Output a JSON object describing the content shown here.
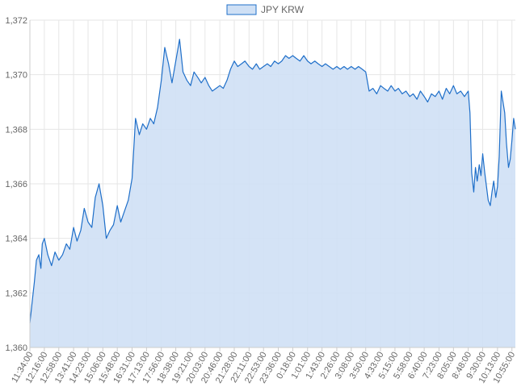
{
  "chart_data": {
    "type": "area",
    "title": "",
    "xlabel": "",
    "ylabel": "",
    "legend": {
      "label": "JPY KRW",
      "position": "top-center"
    },
    "colors": {
      "line": "#1f6fc9",
      "fill": "#cfe0f5",
      "grid": "#e6e6e6",
      "axis_text": "#666666"
    },
    "grid": true,
    "ylim": [
      1360,
      1372
    ],
    "y_ticks": [
      "1,360",
      "1,362",
      "1,364",
      "1,366",
      "1,368",
      "1,370",
      "1,372"
    ],
    "x_tick_labels": [
      "11:34:00",
      "12:16:00",
      "12:58:00",
      "13:41:00",
      "14:23:00",
      "15:06:00",
      "15:48:00",
      "16:31:00",
      "17:13:00",
      "17:56:00",
      "18:38:00",
      "19:21:00",
      "20:03:00",
      "20:46:00",
      "21:28:00",
      "22:11:00",
      "22:53:00",
      "23:36:00",
      "0:18:00",
      "1:01:00",
      "1:43:00",
      "2:26:00",
      "3:08:00",
      "3:50:00",
      "4:33:00",
      "5:15:00",
      "5:58:00",
      "6:40:00",
      "7:23:00",
      "8:05:00",
      "8:48:00",
      "9:30:00",
      "10:13:00",
      "10:55:00"
    ],
    "series": [
      {
        "name": "JPY KRW",
        "points": [
          [
            "11:34:00",
            1360.9
          ],
          [
            "11:40:00",
            1361.6
          ],
          [
            "11:47:00",
            1362.4
          ],
          [
            "11:53:00",
            1363.2
          ],
          [
            "12:00:00",
            1363.4
          ],
          [
            "12:06:00",
            1362.9
          ],
          [
            "12:10:00",
            1363.8
          ],
          [
            "12:16:00",
            1364.0
          ],
          [
            "12:26:00",
            1363.4
          ],
          [
            "12:37:00",
            1363.0
          ],
          [
            "12:47:00",
            1363.5
          ],
          [
            "12:58:00",
            1363.2
          ],
          [
            "13:09:00",
            1363.4
          ],
          [
            "13:20:00",
            1363.8
          ],
          [
            "13:30:00",
            1363.6
          ],
          [
            "13:41:00",
            1364.4
          ],
          [
            "13:51:00",
            1363.9
          ],
          [
            "14:02:00",
            1364.3
          ],
          [
            "14:12:00",
            1365.1
          ],
          [
            "14:23:00",
            1364.6
          ],
          [
            "14:34:00",
            1364.4
          ],
          [
            "14:44:00",
            1365.5
          ],
          [
            "14:55:00",
            1366.0
          ],
          [
            "15:06:00",
            1365.2
          ],
          [
            "15:16:00",
            1364.0
          ],
          [
            "15:27:00",
            1364.3
          ],
          [
            "15:37:00",
            1364.5
          ],
          [
            "15:48:00",
            1365.2
          ],
          [
            "15:58:00",
            1364.6
          ],
          [
            "16:09:00",
            1365.0
          ],
          [
            "16:20:00",
            1365.4
          ],
          [
            "16:31:00",
            1366.2
          ],
          [
            "16:41:00",
            1368.4
          ],
          [
            "16:52:00",
            1367.8
          ],
          [
            "17:02:00",
            1368.2
          ],
          [
            "17:13:00",
            1368.0
          ],
          [
            "17:24:00",
            1368.4
          ],
          [
            "17:34:00",
            1368.2
          ],
          [
            "17:45:00",
            1368.8
          ],
          [
            "17:56:00",
            1369.8
          ],
          [
            "18:06:00",
            1371.0
          ],
          [
            "18:17:00",
            1370.4
          ],
          [
            "18:27:00",
            1369.7
          ],
          [
            "18:38:00",
            1370.5
          ],
          [
            "18:49:00",
            1371.3
          ],
          [
            "18:59:00",
            1370.1
          ],
          [
            "19:10:00",
            1369.8
          ],
          [
            "19:21:00",
            1369.6
          ],
          [
            "19:31:00",
            1370.1
          ],
          [
            "19:42:00",
            1369.9
          ],
          [
            "19:52:00",
            1369.7
          ],
          [
            "20:03:00",
            1369.9
          ],
          [
            "20:14:00",
            1369.6
          ],
          [
            "20:24:00",
            1369.4
          ],
          [
            "20:35:00",
            1369.5
          ],
          [
            "20:46:00",
            1369.6
          ],
          [
            "20:56:00",
            1369.5
          ],
          [
            "21:07:00",
            1369.8
          ],
          [
            "21:17:00",
            1370.2
          ],
          [
            "21:28:00",
            1370.5
          ],
          [
            "21:38:00",
            1370.3
          ],
          [
            "21:49:00",
            1370.4
          ],
          [
            "21:59:00",
            1370.5
          ],
          [
            "22:11:00",
            1370.3
          ],
          [
            "22:21:00",
            1370.2
          ],
          [
            "22:32:00",
            1370.4
          ],
          [
            "22:42:00",
            1370.2
          ],
          [
            "22:53:00",
            1370.3
          ],
          [
            "23:04:00",
            1370.4
          ],
          [
            "23:14:00",
            1370.3
          ],
          [
            "23:25:00",
            1370.5
          ],
          [
            "23:36:00",
            1370.4
          ],
          [
            "23:46:00",
            1370.5
          ],
          [
            "23:57:00",
            1370.7
          ],
          [
            "0:07:00",
            1370.6
          ],
          [
            "0:18:00",
            1370.7
          ],
          [
            "0:28:00",
            1370.6
          ],
          [
            "0:39:00",
            1370.5
          ],
          [
            "0:50:00",
            1370.7
          ],
          [
            "1:01:00",
            1370.5
          ],
          [
            "1:11:00",
            1370.4
          ],
          [
            "1:22:00",
            1370.5
          ],
          [
            "1:32:00",
            1370.4
          ],
          [
            "1:43:00",
            1370.3
          ],
          [
            "1:53:00",
            1370.4
          ],
          [
            "2:04:00",
            1370.3
          ],
          [
            "2:15:00",
            1370.2
          ],
          [
            "2:26:00",
            1370.3
          ],
          [
            "2:36:00",
            1370.2
          ],
          [
            "2:47:00",
            1370.3
          ],
          [
            "2:57:00",
            1370.2
          ],
          [
            "3:08:00",
            1370.3
          ],
          [
            "3:19:00",
            1370.2
          ],
          [
            "3:29:00",
            1370.3
          ],
          [
            "3:40:00",
            1370.2
          ],
          [
            "3:50:00",
            1370.1
          ],
          [
            "4:00:00",
            1369.4
          ],
          [
            "4:11:00",
            1369.5
          ],
          [
            "4:22:00",
            1369.3
          ],
          [
            "4:33:00",
            1369.6
          ],
          [
            "4:43:00",
            1369.5
          ],
          [
            "4:54:00",
            1369.4
          ],
          [
            "5:04:00",
            1369.6
          ],
          [
            "5:15:00",
            1369.4
          ],
          [
            "5:25:00",
            1369.5
          ],
          [
            "5:36:00",
            1369.3
          ],
          [
            "5:47:00",
            1369.4
          ],
          [
            "5:58:00",
            1369.2
          ],
          [
            "6:08:00",
            1369.3
          ],
          [
            "6:19:00",
            1369.1
          ],
          [
            "6:29:00",
            1369.4
          ],
          [
            "6:40:00",
            1369.2
          ],
          [
            "6:50:00",
            1369.0
          ],
          [
            "7:01:00",
            1369.3
          ],
          [
            "7:12:00",
            1369.2
          ],
          [
            "7:23:00",
            1369.4
          ],
          [
            "7:33:00",
            1369.1
          ],
          [
            "7:44:00",
            1369.5
          ],
          [
            "7:54:00",
            1369.3
          ],
          [
            "8:05:00",
            1369.6
          ],
          [
            "8:15:00",
            1369.3
          ],
          [
            "8:26:00",
            1369.4
          ],
          [
            "8:37:00",
            1369.2
          ],
          [
            "8:48:00",
            1369.4
          ],
          [
            "8:53:00",
            1368.6
          ],
          [
            "8:58:00",
            1366.4
          ],
          [
            "9:04:00",
            1365.7
          ],
          [
            "9:09:00",
            1366.6
          ],
          [
            "9:14:00",
            1366.1
          ],
          [
            "9:20:00",
            1366.7
          ],
          [
            "9:25:00",
            1366.3
          ],
          [
            "9:30:00",
            1367.1
          ],
          [
            "9:36:00",
            1366.4
          ],
          [
            "9:41:00",
            1365.9
          ],
          [
            "9:46:00",
            1365.4
          ],
          [
            "9:52:00",
            1365.2
          ],
          [
            "9:57:00",
            1365.7
          ],
          [
            "10:02:00",
            1366.1
          ],
          [
            "10:08:00",
            1365.5
          ],
          [
            "10:13:00",
            1365.9
          ],
          [
            "10:18:00",
            1367.0
          ],
          [
            "10:24:00",
            1369.4
          ],
          [
            "10:29:00",
            1369.0
          ],
          [
            "10:34:00",
            1368.6
          ],
          [
            "10:39:00",
            1367.5
          ],
          [
            "10:45:00",
            1366.6
          ],
          [
            "10:50:00",
            1366.9
          ],
          [
            "10:55:00",
            1367.6
          ],
          [
            "11:00:00",
            1368.4
          ],
          [
            "11:05:00",
            1368.0
          ]
        ]
      }
    ]
  }
}
